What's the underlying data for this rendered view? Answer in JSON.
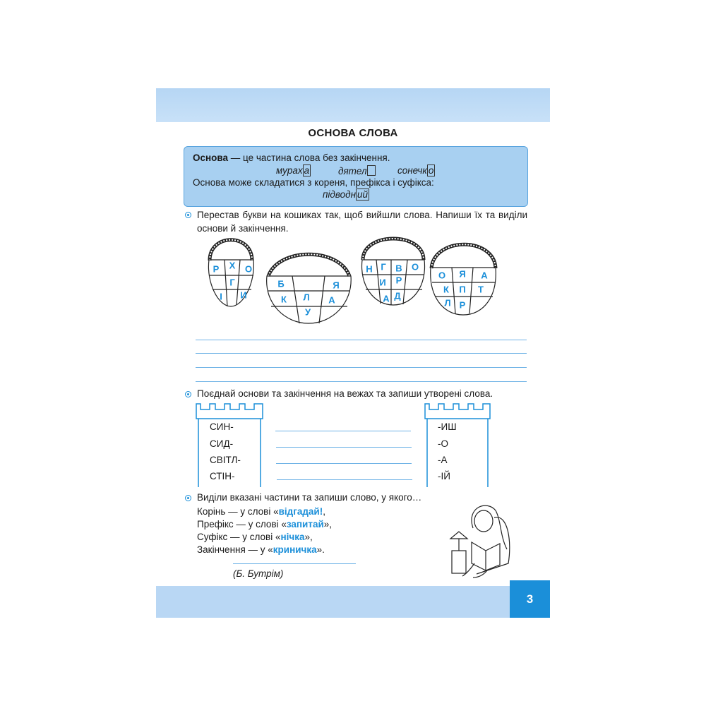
{
  "page": {
    "title": "ОСНОВА СЛОВА",
    "page_number": "3",
    "colors": {
      "accent": "#1b8fd9",
      "band": "#b9d7f4",
      "rule_box": "#a8d0f1"
    }
  },
  "rule": {
    "term": "Основа",
    "definition": " — це частина слова без закінчення.",
    "examples": [
      {
        "stem": "мурах",
        "ending": "а"
      },
      {
        "stem": "дятел",
        "ending": ""
      },
      {
        "stem": "сонечк",
        "ending": "о"
      }
    ],
    "line2": "Основа може складатися з кореня, префікса і суфікса:",
    "example2": {
      "stem": "підводн",
      "ending": "ий"
    }
  },
  "task1": {
    "text": "Перестав букви на кошиках так, щоб вийшли слова. Напиши їх та виділи основи й закінчення.",
    "baskets": [
      [
        "Р",
        "Х",
        "О",
        "Г",
        "І",
        "И"
      ],
      [
        "Б",
        "Я",
        "К",
        "Л",
        "А",
        "У"
      ],
      [
        "Н",
        "Г",
        "В",
        "О",
        "И",
        "Р",
        "А",
        "Д"
      ],
      [
        "О",
        "Я",
        "А",
        "К",
        "П",
        "Т",
        "Л",
        "Р"
      ]
    ]
  },
  "task2": {
    "text": "Поєднай основи та закінчення на вежах та запиши утворені слова.",
    "stems": [
      "СИН-",
      "СИД-",
      "СВІТЛ-",
      "СТІН-"
    ],
    "endings": [
      "-ИШ",
      "-О",
      "-А",
      "-ІЙ"
    ]
  },
  "task3": {
    "text": "Виділи вказані частини та запиши слово, у якого…",
    "lines": [
      {
        "pre": "Корінь — у слові «",
        "word": "відгадай!",
        "post": ","
      },
      {
        "pre": "Префікс — у слові «",
        "word": "запитай",
        "post": "»,"
      },
      {
        "pre": "Суфікс — у слові «",
        "word": "нічка",
        "post": "»,"
      },
      {
        "pre": "Закінчення — у «",
        "word": "криничка",
        "post": "»."
      }
    ],
    "author": "(Б. Бутрім)"
  }
}
